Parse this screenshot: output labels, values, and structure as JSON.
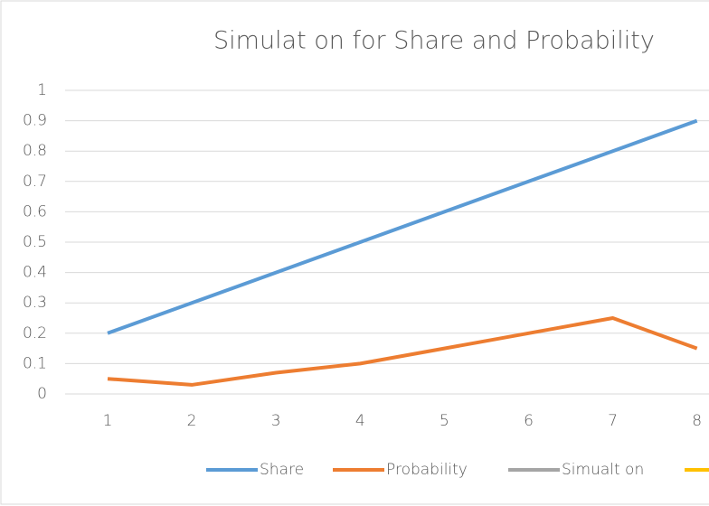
{
  "chart_data": {
    "type": "line",
    "title": "Simulat on for Share and Probability",
    "categories": [
      "1",
      "2",
      "3",
      "4",
      "5",
      "6",
      "7",
      "8"
    ],
    "series": [
      {
        "name": "Share",
        "color": "#5b9bd5",
        "values": [
          0.2,
          0.3,
          0.4,
          0.5,
          0.6,
          0.7,
          0.8,
          0.9
        ]
      },
      {
        "name": "Probability",
        "color": "#ed7d31",
        "values": [
          0.05,
          0.03,
          0.07,
          0.1,
          0.15,
          0.2,
          0.25,
          0.15
        ]
      },
      {
        "name": "Simualt on",
        "color": "#a5a5a5",
        "values": [
          null,
          null,
          null,
          null,
          null,
          null,
          null,
          null
        ]
      }
    ],
    "ylim": [
      0,
      1
    ],
    "yticks": [
      0,
      0.1,
      0.2,
      0.3,
      0.4,
      0.5,
      0.6,
      0.7,
      0.8,
      0.9,
      1
    ],
    "grid": true,
    "legend": "bottom"
  }
}
